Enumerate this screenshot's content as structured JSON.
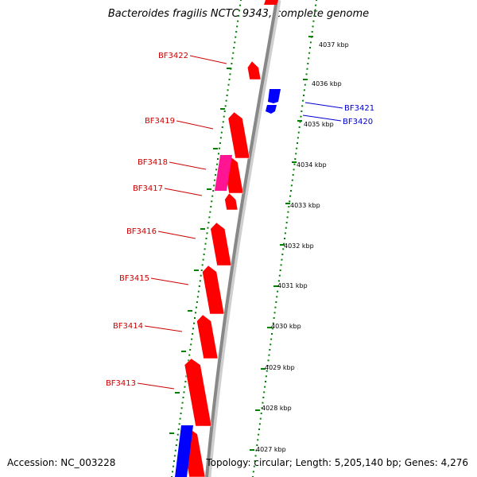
{
  "title": "Bacteroides fragilis NCTC 9343, complete genome",
  "footer": {
    "accession": "Accession: NC_003228",
    "topology": "Topology: circular; Length: 5,205,140 bp; Genes: 4,276"
  },
  "colors": {
    "forward_gene": "#ff0000",
    "reverse_gene": "#0000ff",
    "highlight_gene": "#ff1493",
    "backbone": "#888888",
    "tick_ring": "#008000",
    "left_label": "#cc0000",
    "right_label": "#0000cc"
  },
  "kbp_labels": [
    "4037 kbp",
    "4036 kbp",
    "4035 kbp",
    "4034 kbp",
    "4033 kbp",
    "4032 kbp",
    "4031 kbp",
    "4030 kbp",
    "4029 kbp",
    "4028 kbp",
    "4027 kbp"
  ],
  "gene_labels_left": [
    "BF3422",
    "BF3419",
    "BF3418",
    "BF3417",
    "BF3416",
    "BF3415",
    "BF3414",
    "BF3413"
  ],
  "gene_labels_right": [
    "BF3421",
    "BF3420"
  ]
}
